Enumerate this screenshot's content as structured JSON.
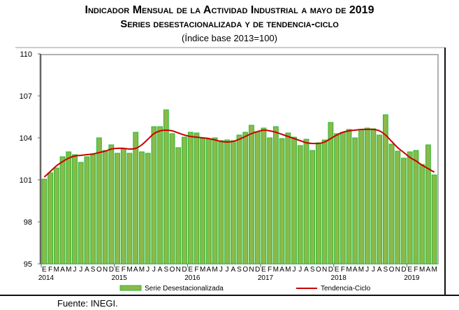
{
  "title": "Indicador Mensual de la Actividad Industrial a mayo de 2019",
  "subtitle": "Series desestacionalizada y de tendencia-ciclo",
  "note": "(Índice base 2013=100)",
  "source": "Fuente: INEGI.",
  "colors": {
    "bars": "#8db84a",
    "bar_edge": "#22bb33",
    "trend": "#cc0000"
  },
  "chart_data": {
    "type": "bar",
    "title": "Indicador Mensual de la Actividad Industrial a mayo de 2019",
    "ylim": [
      95,
      110
    ],
    "yticks": [
      95,
      98,
      101,
      104,
      107,
      110
    ],
    "month_labels": [
      "E",
      "F",
      "M",
      "A",
      "M",
      "J",
      "J",
      "A",
      "S",
      "O",
      "N",
      "D"
    ],
    "year_labels": [
      "2014",
      "2015",
      "2016",
      "2017",
      "2018",
      "2019"
    ],
    "legend_placement": "bottom",
    "grid": false,
    "series": [
      {
        "name": "Serie Desestacionalizada",
        "type": "bar",
        "values": [
          101.05,
          101.5,
          101.85,
          102.65,
          103.0,
          102.8,
          102.25,
          102.65,
          102.8,
          104.0,
          103.1,
          103.5,
          102.9,
          103.2,
          102.9,
          104.4,
          103.0,
          102.9,
          104.8,
          104.8,
          106.0,
          104.3,
          103.3,
          104.05,
          104.4,
          104.35,
          103.95,
          103.9,
          104.0,
          103.8,
          103.85,
          103.8,
          104.2,
          104.4,
          104.9,
          104.45,
          104.7,
          104.0,
          104.8,
          103.95,
          104.35,
          104.05,
          103.45,
          103.9,
          103.1,
          103.65,
          103.85,
          105.1,
          104.3,
          104.4,
          104.6,
          104.0,
          104.6,
          104.7,
          104.65,
          104.2,
          105.65,
          103.55,
          103.05,
          102.55,
          103.0,
          103.1,
          102.1,
          103.5,
          101.35
        ]
      },
      {
        "name": "Tendencia-Ciclo",
        "type": "line",
        "values": [
          101.2,
          101.6,
          102.0,
          102.3,
          102.55,
          102.7,
          102.75,
          102.8,
          102.85,
          102.95,
          103.05,
          103.2,
          103.25,
          103.25,
          103.2,
          103.25,
          103.5,
          103.9,
          104.3,
          104.5,
          104.55,
          104.5,
          104.35,
          104.2,
          104.1,
          104.05,
          104.0,
          103.95,
          103.85,
          103.75,
          103.7,
          103.75,
          103.9,
          104.1,
          104.3,
          104.45,
          104.55,
          104.5,
          104.4,
          104.25,
          104.1,
          103.95,
          103.8,
          103.65,
          103.6,
          103.6,
          103.7,
          103.95,
          104.2,
          104.4,
          104.5,
          104.55,
          104.6,
          104.6,
          104.6,
          104.5,
          104.2,
          103.75,
          103.3,
          102.95,
          102.6,
          102.35,
          102.05,
          101.8,
          101.55
        ]
      }
    ]
  }
}
